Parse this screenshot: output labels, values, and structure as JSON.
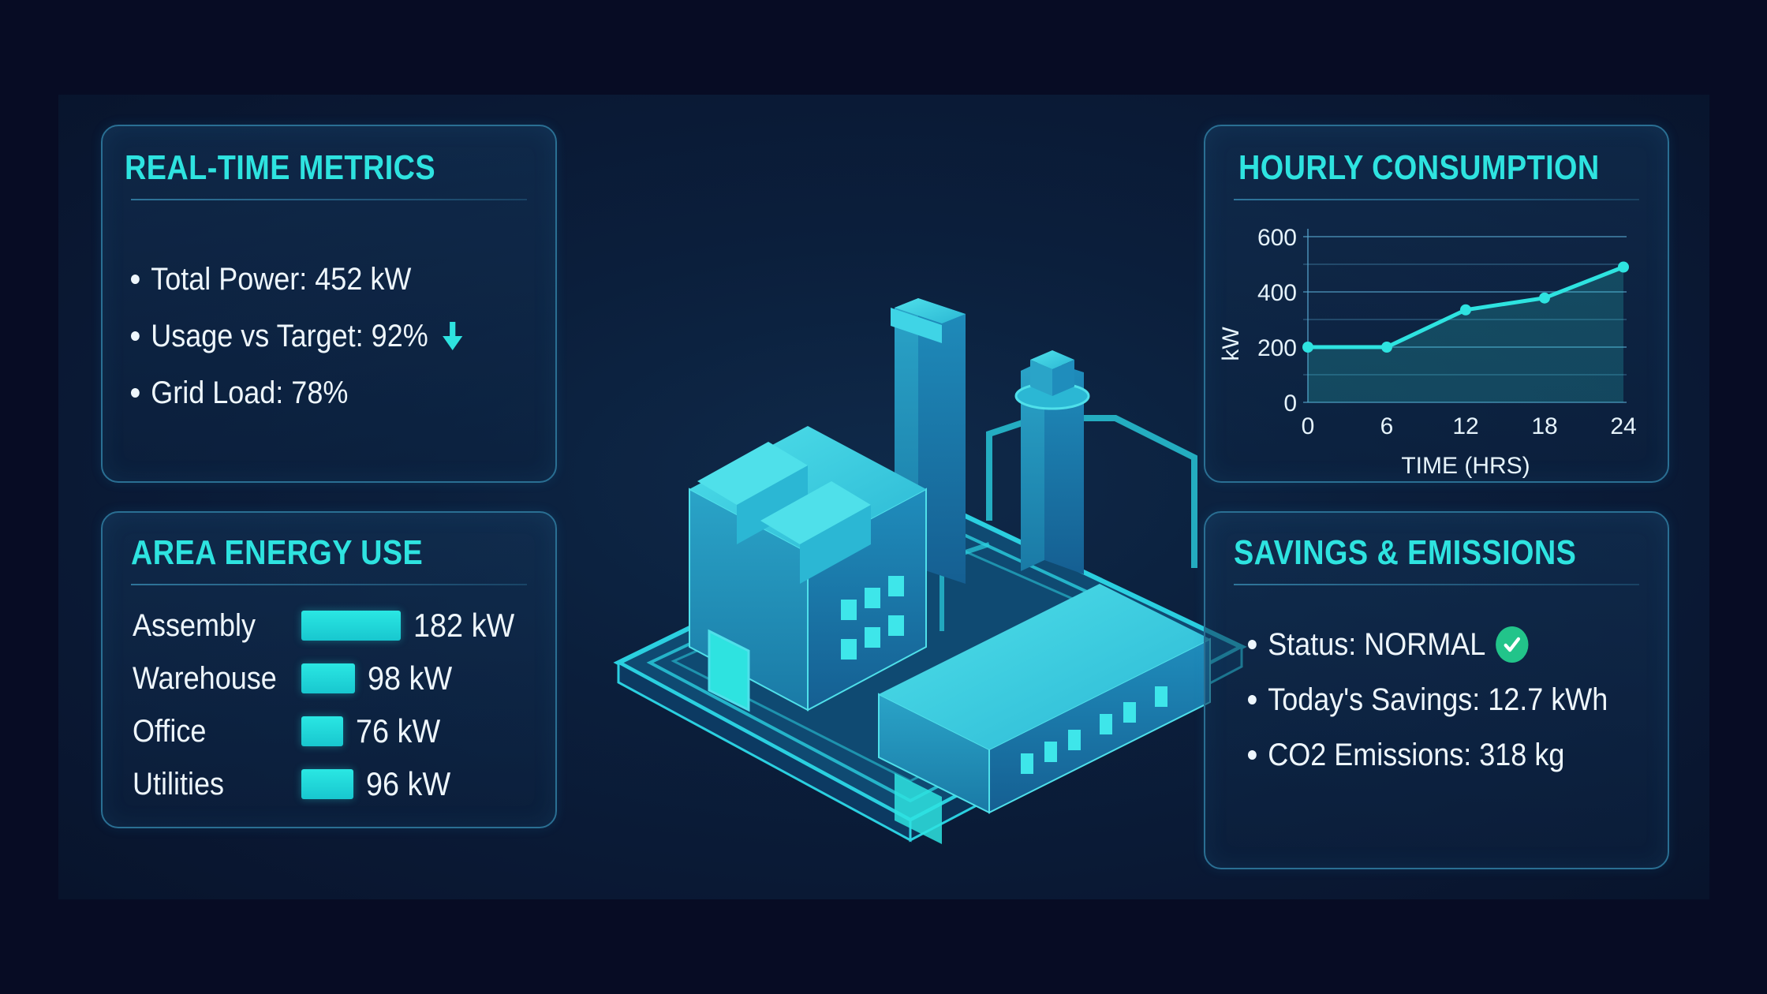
{
  "realtime": {
    "title": "REAL-TIME METRICS",
    "items": [
      "Total Power: 452 kW",
      "Usage vs Target: 92%",
      "Grid Load: 78%"
    ],
    "usage_trend_icon": "arrow-down-icon"
  },
  "area": {
    "title": "AREA ENERGY USE",
    "rows": [
      {
        "label": "Assembly",
        "value": "182 kW",
        "kw": 182
      },
      {
        "label": "Warehouse",
        "value": "98 kW",
        "kw": 98
      },
      {
        "label": "Office",
        "value": "76 kW",
        "kw": 76
      },
      {
        "label": "Utilities",
        "value": "96 kW",
        "kw": 96
      }
    ]
  },
  "hourly": {
    "title": "HOURLY CONSUMPTION"
  },
  "chart_data": {
    "type": "area",
    "title": "HOURLY CONSUMPTION",
    "xlabel": "TIME (HRS)",
    "ylabel": "kW",
    "x": [
      0,
      6,
      12,
      18,
      24
    ],
    "y": [
      200,
      200,
      335,
      378,
      490
    ],
    "xticks": [
      "0",
      "6",
      "12",
      "18",
      "24"
    ],
    "yticks": [
      "0",
      "200",
      "400",
      "600"
    ],
    "xlim": [
      0,
      24
    ],
    "ylim": [
      0,
      600
    ],
    "grid": true
  },
  "savings": {
    "title": "SAVINGS & EMISSIONS",
    "items": [
      "Status: NORMAL",
      "Today's Savings: 12.7 kWh",
      "CO2 Emissions: 318 kg"
    ],
    "status_icon": "check-circle-icon"
  },
  "colors": {
    "accent": "#2ee3e0",
    "panel_border": "#2a6f93",
    "background": "#070c24",
    "status_ok": "#22c48a"
  }
}
